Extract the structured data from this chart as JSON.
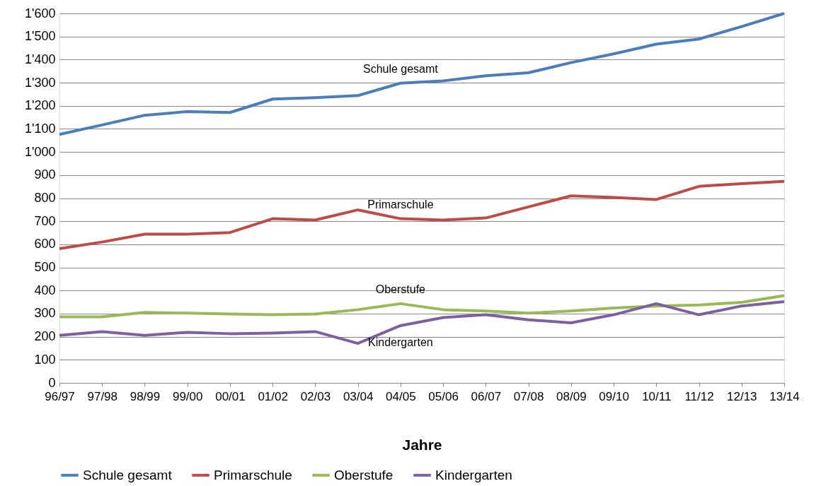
{
  "chart_data": {
    "type": "line",
    "xlabel": "Jahre",
    "categories": [
      "96/97",
      "97/98",
      "98/99",
      "99/00",
      "00/01",
      "01/02",
      "02/03",
      "03/04",
      "04/05",
      "05/06",
      "06/07",
      "07/08",
      "08/09",
      "09/10",
      "10/11",
      "11/12",
      "12/13",
      "13/14"
    ],
    "series": [
      {
        "name": "Schule gesamt",
        "color": "#4a7ebb",
        "values": [
          1076,
          1117,
          1159,
          1175,
          1171,
          1229,
          1235,
          1244,
          1298,
          1308,
          1330,
          1343,
          1387,
          1425,
          1467,
          1489,
          1543,
          1600
        ]
      },
      {
        "name": "Primarschule",
        "color": "#be4b48",
        "values": [
          581,
          610,
          644,
          644,
          651,
          711,
          705,
          749,
          711,
          705,
          714,
          762,
          810,
          803,
          794,
          851,
          863,
          873
        ]
      },
      {
        "name": "Oberstufe",
        "color": "#98b954",
        "values": [
          286,
          286,
          305,
          302,
          298,
          295,
          298,
          317,
          343,
          317,
          311,
          302,
          311,
          324,
          333,
          337,
          349,
          378
        ]
      },
      {
        "name": "Kindergarten",
        "color": "#7d60a0",
        "values": [
          206,
          222,
          206,
          219,
          213,
          216,
          222,
          171,
          248,
          283,
          295,
          273,
          260,
          295,
          343,
          295,
          333,
          352
        ]
      }
    ],
    "ylim": [
      0,
      1600
    ],
    "yticks": [
      0,
      100,
      200,
      300,
      400,
      500,
      600,
      700,
      800,
      900,
      {
        "value": 1000,
        "label": "1'000"
      },
      {
        "value": 1100,
        "label": "1'100"
      },
      {
        "value": 1200,
        "label": "1'200"
      },
      {
        "value": 1300,
        "label": "1'300"
      },
      {
        "value": 1400,
        "label": "1'400"
      },
      {
        "value": 1500,
        "label": "1'500"
      },
      {
        "value": 1600,
        "label": "1'600"
      }
    ],
    "annotations": [
      "Schule gesamt",
      "Primarschule",
      "Oberstufe",
      "Kindergarten"
    ],
    "grid": "y",
    "legend": "bottom",
    "marker": "none",
    "line_style": "solid"
  }
}
